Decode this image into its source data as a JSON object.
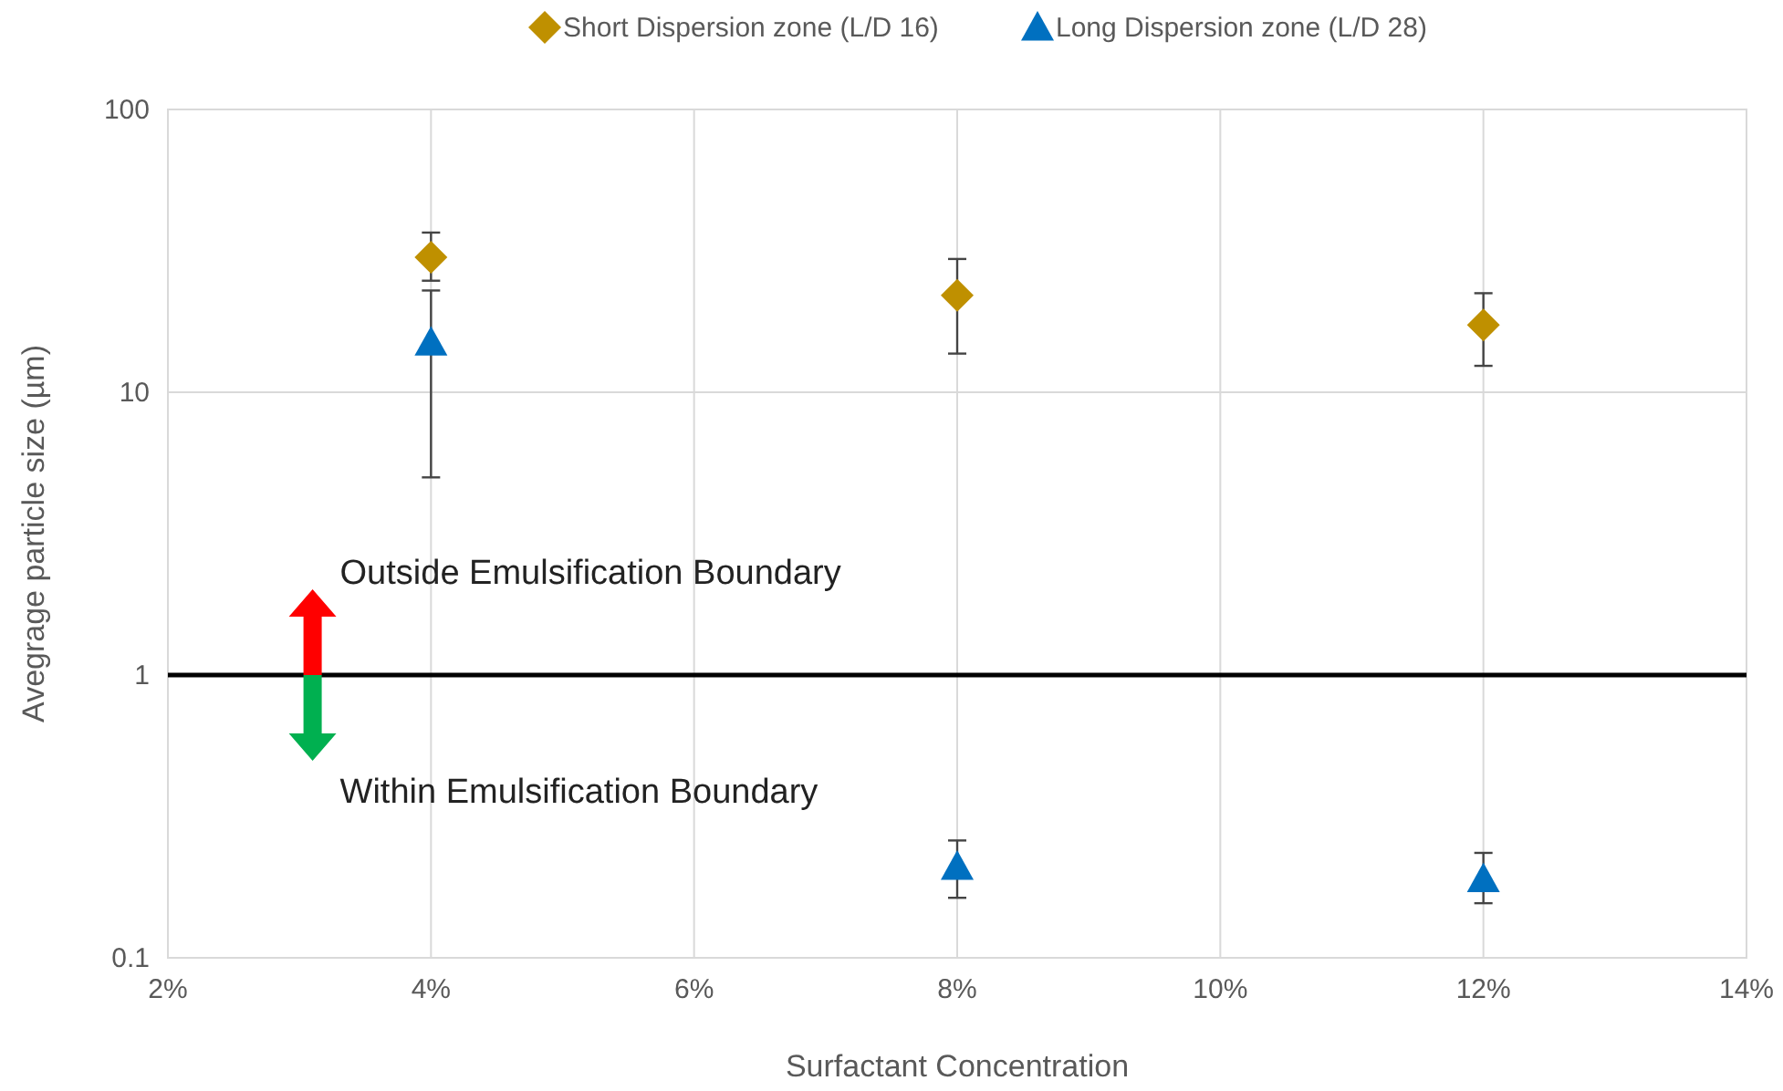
{
  "chart_data": {
    "type": "scatter",
    "xlabel": "Surfactant Concentration",
    "ylabel": "Avegrage particle size (µm)",
    "x": [
      4,
      8,
      12
    ],
    "series": [
      {
        "name": "Short Dispersion zone (L/D 16)",
        "color": "#bf9000",
        "marker": "diamond",
        "values": [
          30,
          22,
          17.3
        ],
        "errors": [
          [
            24.8,
            36.7
          ],
          [
            13.7,
            29.6
          ],
          [
            12.4,
            22.4
          ]
        ]
      },
      {
        "name": "Long Dispersion zone (L/D 28)",
        "color": "#0070c0",
        "marker": "triangle",
        "values": [
          15,
          0.21,
          0.19
        ],
        "errors": [
          [
            5,
            22.9
          ],
          [
            0.163,
            0.26
          ],
          [
            0.156,
            0.235
          ]
        ]
      }
    ],
    "xlim": [
      2,
      14
    ],
    "xticks": [
      {
        "value": 2,
        "label": "2%"
      },
      {
        "value": 4,
        "label": "4%"
      },
      {
        "value": 6,
        "label": "6%"
      },
      {
        "value": 8,
        "label": "8%"
      },
      {
        "value": 10,
        "label": "10%"
      },
      {
        "value": 12,
        "label": "12%"
      },
      {
        "value": 14,
        "label": "14%"
      }
    ],
    "ylim": [
      0.1,
      100
    ],
    "yticks": [
      0.1,
      1,
      10,
      100
    ],
    "log": "y",
    "grid": true,
    "legend": "top",
    "ref_lines": [
      {
        "axis": "y",
        "value": 1,
        "color": "#000000"
      }
    ],
    "annotations": [
      {
        "text": "Outside Emulsification Boundary",
        "x": 3.1,
        "y": 1
      },
      {
        "text": "Within Emulsification Boundary",
        "x": 3.1,
        "y": 1
      }
    ]
  }
}
